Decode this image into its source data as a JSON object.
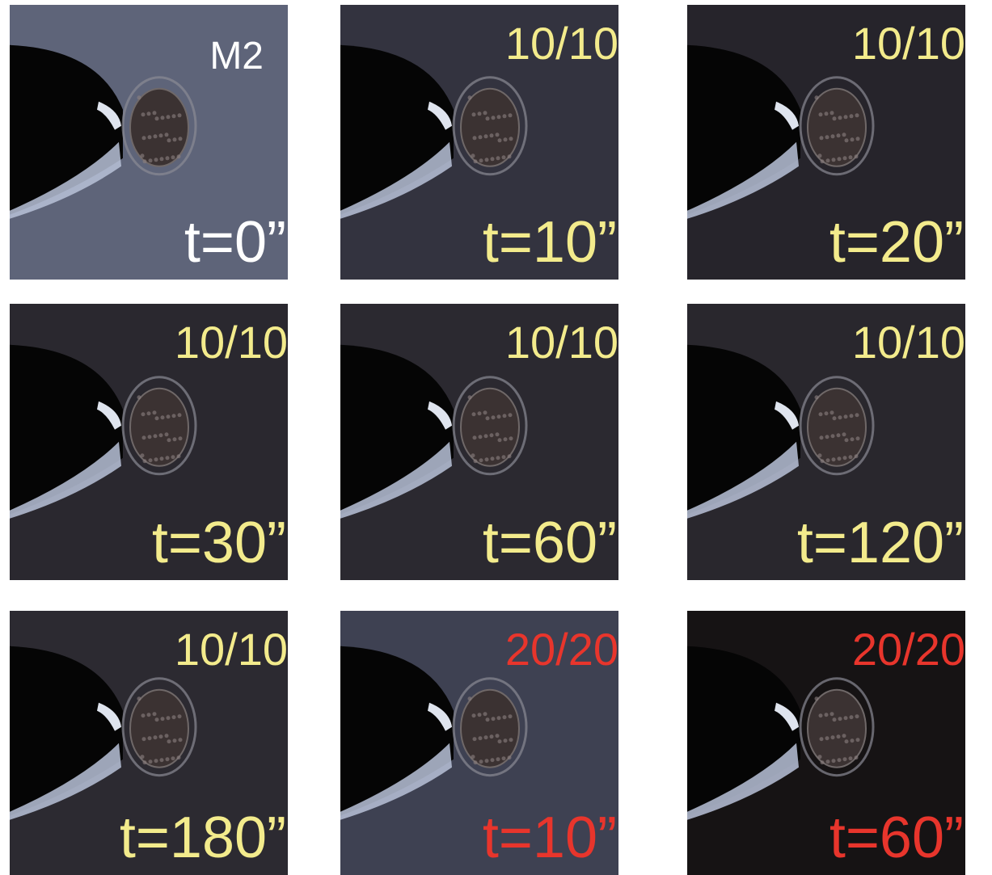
{
  "panels": [
    {
      "top": "M2",
      "time": "t=0”",
      "color": "#ffffff",
      "top_color": "#ffffff"
    },
    {
      "top": "10/10",
      "time": "t=10”",
      "color": "#f3eb8c",
      "top_color": "#f3eb8c"
    },
    {
      "top": "10/10",
      "time": "t=20”",
      "color": "#f3eb8c",
      "top_color": "#f3eb8c"
    },
    {
      "top": "10/10",
      "time": "t=30”",
      "color": "#f3eb8c",
      "top_color": "#f3eb8c"
    },
    {
      "top": "10/10",
      "time": "t=60”",
      "color": "#f3eb8c",
      "top_color": "#f3eb8c"
    },
    {
      "top": "10/10",
      "time": "t=120”",
      "color": "#f3eb8c",
      "top_color": "#f3eb8c"
    },
    {
      "top": "10/10",
      "time": "t=180”",
      "color": "#f3eb8c",
      "top_color": "#f3eb8c"
    },
    {
      "top": "20/20",
      "time": "t=10”",
      "color": "#e8352c",
      "top_color": "#e8352c"
    },
    {
      "top": "20/20",
      "time": "t=60”",
      "color": "#e8352c",
      "top_color": "#e8352c"
    }
  ]
}
